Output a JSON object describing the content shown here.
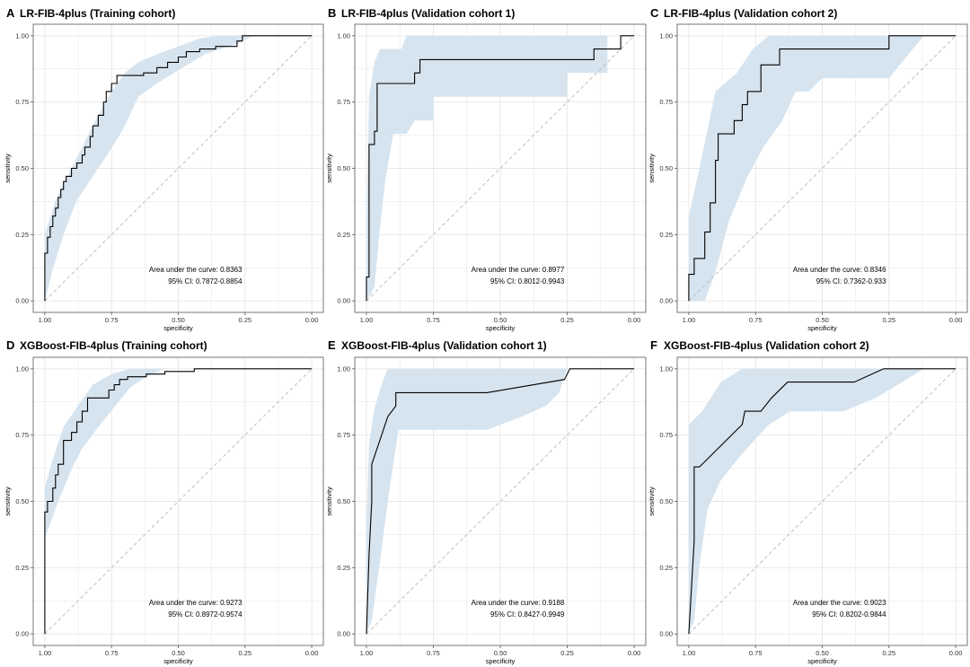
{
  "figure": {
    "xlabel": "specificity",
    "ylabel": "sensitivity",
    "auc_prefix": "Area under the curve: ",
    "ci_prefix": "95% CI: ",
    "x_ticks": [
      "1.00",
      "0.75",
      "0.50",
      "0.25",
      "0.00"
    ],
    "y_ticks": [
      "0.00",
      "0.25",
      "0.50",
      "0.75",
      "1.00"
    ],
    "colors": {
      "band": "#d6e4ef",
      "curve": "#000000",
      "diagonal": "#bfbfbf",
      "grid": "#e6e6e6",
      "axis": "#555555"
    }
  },
  "chart_data": [
    {
      "letter": "A",
      "type": "line",
      "title": "LR-FIB-4plus (Training cohort)",
      "xlabel": "specificity",
      "ylabel": "sensitivity",
      "xlim": [
        1,
        0
      ],
      "ylim": [
        0,
        1
      ],
      "auc": "0.8363",
      "ci": "0.7872-0.8854",
      "roc": [
        [
          1.0,
          0.0
        ],
        [
          1.0,
          0.18
        ],
        [
          0.99,
          0.18
        ],
        [
          0.99,
          0.24
        ],
        [
          0.98,
          0.24
        ],
        [
          0.98,
          0.28
        ],
        [
          0.97,
          0.28
        ],
        [
          0.97,
          0.32
        ],
        [
          0.96,
          0.32
        ],
        [
          0.96,
          0.35
        ],
        [
          0.95,
          0.35
        ],
        [
          0.95,
          0.39
        ],
        [
          0.94,
          0.39
        ],
        [
          0.94,
          0.42
        ],
        [
          0.93,
          0.42
        ],
        [
          0.93,
          0.45
        ],
        [
          0.92,
          0.45
        ],
        [
          0.92,
          0.47
        ],
        [
          0.9,
          0.47
        ],
        [
          0.9,
          0.5
        ],
        [
          0.88,
          0.5
        ],
        [
          0.88,
          0.52
        ],
        [
          0.86,
          0.52
        ],
        [
          0.86,
          0.55
        ],
        [
          0.85,
          0.55
        ],
        [
          0.85,
          0.58
        ],
        [
          0.83,
          0.58
        ],
        [
          0.83,
          0.62
        ],
        [
          0.82,
          0.62
        ],
        [
          0.82,
          0.66
        ],
        [
          0.8,
          0.66
        ],
        [
          0.8,
          0.7
        ],
        [
          0.78,
          0.7
        ],
        [
          0.78,
          0.75
        ],
        [
          0.77,
          0.75
        ],
        [
          0.77,
          0.79
        ],
        [
          0.75,
          0.79
        ],
        [
          0.75,
          0.82
        ],
        [
          0.73,
          0.82
        ],
        [
          0.73,
          0.85
        ],
        [
          0.63,
          0.85
        ],
        [
          0.63,
          0.86
        ],
        [
          0.58,
          0.86
        ],
        [
          0.58,
          0.88
        ],
        [
          0.54,
          0.88
        ],
        [
          0.54,
          0.9
        ],
        [
          0.5,
          0.9
        ],
        [
          0.5,
          0.92
        ],
        [
          0.47,
          0.92
        ],
        [
          0.47,
          0.94
        ],
        [
          0.42,
          0.94
        ],
        [
          0.42,
          0.95
        ],
        [
          0.36,
          0.95
        ],
        [
          0.36,
          0.96
        ],
        [
          0.28,
          0.96
        ],
        [
          0.28,
          0.98
        ],
        [
          0.26,
          0.98
        ],
        [
          0.26,
          1.0
        ],
        [
          0.0,
          1.0
        ]
      ],
      "ci_upper": [
        [
          1.0,
          0.25
        ],
        [
          0.96,
          0.38
        ],
        [
          0.9,
          0.5
        ],
        [
          0.85,
          0.6
        ],
        [
          0.8,
          0.7
        ],
        [
          0.75,
          0.79
        ],
        [
          0.7,
          0.86
        ],
        [
          0.65,
          0.9
        ],
        [
          0.58,
          0.93
        ],
        [
          0.5,
          0.96
        ],
        [
          0.42,
          0.99
        ],
        [
          0.35,
          1.0
        ],
        [
          0.0,
          1.0
        ]
      ],
      "ci_lower": [
        [
          0.0,
          1.0
        ],
        [
          0.22,
          1.0
        ],
        [
          0.28,
          0.97
        ],
        [
          0.4,
          0.93
        ],
        [
          0.5,
          0.87
        ],
        [
          0.58,
          0.82
        ],
        [
          0.65,
          0.77
        ],
        [
          0.7,
          0.66
        ],
        [
          0.76,
          0.56
        ],
        [
          0.82,
          0.47
        ],
        [
          0.88,
          0.38
        ],
        [
          0.93,
          0.25
        ],
        [
          0.97,
          0.12
        ],
        [
          1.0,
          0.0
        ]
      ]
    },
    {
      "letter": "B",
      "type": "line",
      "title": "LR-FIB-4plus (Validation cohort 1)",
      "xlabel": "specificity",
      "ylabel": "sensitivity",
      "xlim": [
        1,
        0
      ],
      "ylim": [
        0,
        1
      ],
      "auc": "0.8977",
      "ci": "0.8012-0.9943",
      "roc": [
        [
          1.0,
          0.0
        ],
        [
          1.0,
          0.09
        ],
        [
          0.99,
          0.09
        ],
        [
          0.99,
          0.59
        ],
        [
          0.97,
          0.59
        ],
        [
          0.97,
          0.64
        ],
        [
          0.96,
          0.64
        ],
        [
          0.96,
          0.82
        ],
        [
          0.82,
          0.82
        ],
        [
          0.82,
          0.86
        ],
        [
          0.8,
          0.86
        ],
        [
          0.8,
          0.91
        ],
        [
          0.15,
          0.91
        ],
        [
          0.15,
          0.95
        ],
        [
          0.05,
          0.95
        ],
        [
          0.05,
          1.0
        ],
        [
          0.0,
          1.0
        ]
      ],
      "ci_upper": [
        [
          1.0,
          0.3
        ],
        [
          0.99,
          0.77
        ],
        [
          0.97,
          0.9
        ],
        [
          0.95,
          0.95
        ],
        [
          0.87,
          0.95
        ],
        [
          0.85,
          1.0
        ],
        [
          0.0,
          1.0
        ]
      ],
      "ci_lower": [
        [
          0.0,
          1.0
        ],
        [
          0.1,
          1.0
        ],
        [
          0.1,
          0.86
        ],
        [
          0.25,
          0.86
        ],
        [
          0.25,
          0.77
        ],
        [
          0.75,
          0.77
        ],
        [
          0.75,
          0.68
        ],
        [
          0.82,
          0.68
        ],
        [
          0.85,
          0.63
        ],
        [
          0.9,
          0.63
        ],
        [
          0.93,
          0.45
        ],
        [
          0.95,
          0.27
        ],
        [
          0.97,
          0.05
        ],
        [
          1.0,
          0.0
        ]
      ]
    },
    {
      "letter": "C",
      "type": "line",
      "title": "LR-FIB-4plus (Validation cohort 2)",
      "xlabel": "specificity",
      "ylabel": "sensitivity",
      "xlim": [
        1,
        0
      ],
      "ylim": [
        0,
        1
      ],
      "auc": "0.8346",
      "ci": "0.7362-0.933",
      "roc": [
        [
          1.0,
          0.0
        ],
        [
          1.0,
          0.1
        ],
        [
          0.98,
          0.1
        ],
        [
          0.98,
          0.16
        ],
        [
          0.94,
          0.16
        ],
        [
          0.94,
          0.26
        ],
        [
          0.92,
          0.26
        ],
        [
          0.92,
          0.37
        ],
        [
          0.9,
          0.37
        ],
        [
          0.9,
          0.53
        ],
        [
          0.89,
          0.53
        ],
        [
          0.89,
          0.63
        ],
        [
          0.83,
          0.63
        ],
        [
          0.83,
          0.68
        ],
        [
          0.8,
          0.68
        ],
        [
          0.8,
          0.74
        ],
        [
          0.78,
          0.74
        ],
        [
          0.78,
          0.79
        ],
        [
          0.73,
          0.79
        ],
        [
          0.73,
          0.89
        ],
        [
          0.66,
          0.89
        ],
        [
          0.66,
          0.95
        ],
        [
          0.25,
          0.95
        ],
        [
          0.25,
          1.0
        ],
        [
          0.0,
          1.0
        ]
      ],
      "ci_upper": [
        [
          1.0,
          0.32
        ],
        [
          0.96,
          0.5
        ],
        [
          0.9,
          0.79
        ],
        [
          0.82,
          0.86
        ],
        [
          0.76,
          0.95
        ],
        [
          0.7,
          1.0
        ],
        [
          0.0,
          1.0
        ]
      ],
      "ci_lower": [
        [
          0.0,
          1.0
        ],
        [
          0.12,
          1.0
        ],
        [
          0.25,
          0.84
        ],
        [
          0.5,
          0.84
        ],
        [
          0.55,
          0.79
        ],
        [
          0.6,
          0.79
        ],
        [
          0.65,
          0.68
        ],
        [
          0.72,
          0.58
        ],
        [
          0.78,
          0.47
        ],
        [
          0.85,
          0.3
        ],
        [
          0.9,
          0.11
        ],
        [
          0.94,
          0.0
        ],
        [
          1.0,
          0.0
        ]
      ]
    },
    {
      "letter": "D",
      "type": "line",
      "title": "XGBoost-FIB-4plus (Training cohort)",
      "xlabel": "specificity",
      "ylabel": "sensitivity",
      "xlim": [
        1,
        0
      ],
      "ylim": [
        0,
        1
      ],
      "auc": "0.9273",
      "ci": "0.8972-0.9574",
      "roc": [
        [
          1.0,
          0.0
        ],
        [
          1.0,
          0.46
        ],
        [
          0.99,
          0.46
        ],
        [
          0.99,
          0.5
        ],
        [
          0.97,
          0.5
        ],
        [
          0.97,
          0.55
        ],
        [
          0.96,
          0.55
        ],
        [
          0.96,
          0.6
        ],
        [
          0.95,
          0.6
        ],
        [
          0.95,
          0.64
        ],
        [
          0.93,
          0.64
        ],
        [
          0.93,
          0.73
        ],
        [
          0.9,
          0.73
        ],
        [
          0.9,
          0.76
        ],
        [
          0.88,
          0.76
        ],
        [
          0.88,
          0.8
        ],
        [
          0.86,
          0.8
        ],
        [
          0.86,
          0.84
        ],
        [
          0.84,
          0.84
        ],
        [
          0.84,
          0.89
        ],
        [
          0.76,
          0.89
        ],
        [
          0.76,
          0.92
        ],
        [
          0.74,
          0.92
        ],
        [
          0.74,
          0.94
        ],
        [
          0.72,
          0.94
        ],
        [
          0.72,
          0.96
        ],
        [
          0.69,
          0.96
        ],
        [
          0.69,
          0.97
        ],
        [
          0.62,
          0.97
        ],
        [
          0.62,
          0.98
        ],
        [
          0.55,
          0.98
        ],
        [
          0.55,
          0.99
        ],
        [
          0.44,
          0.99
        ],
        [
          0.44,
          1.0
        ],
        [
          0.0,
          1.0
        ]
      ],
      "ci_upper": [
        [
          1.0,
          0.55
        ],
        [
          0.97,
          0.66
        ],
        [
          0.93,
          0.78
        ],
        [
          0.87,
          0.87
        ],
        [
          0.82,
          0.94
        ],
        [
          0.75,
          0.98
        ],
        [
          0.68,
          1.0
        ],
        [
          0.0,
          1.0
        ]
      ],
      "ci_lower": [
        [
          0.0,
          1.0
        ],
        [
          0.55,
          1.0
        ],
        [
          0.62,
          0.97
        ],
        [
          0.68,
          0.93
        ],
        [
          0.72,
          0.88
        ],
        [
          0.8,
          0.78
        ],
        [
          0.86,
          0.7
        ],
        [
          0.9,
          0.62
        ],
        [
          0.95,
          0.5
        ],
        [
          1.0,
          0.36
        ]
      ]
    },
    {
      "letter": "E",
      "type": "line",
      "title": "XGBoost-FIB-4plus (Validation cohort 1)",
      "xlabel": "specificity",
      "ylabel": "sensitivity",
      "xlim": [
        1,
        0
      ],
      "ylim": [
        0,
        1
      ],
      "auc": "0.9188",
      "ci": "0.8427-0.9949",
      "roc": [
        [
          1.0,
          0.0
        ],
        [
          0.99,
          0.3
        ],
        [
          0.98,
          0.5
        ],
        [
          0.98,
          0.64
        ],
        [
          0.95,
          0.73
        ],
        [
          0.92,
          0.82
        ],
        [
          0.89,
          0.86
        ],
        [
          0.89,
          0.91
        ],
        [
          0.55,
          0.91
        ],
        [
          0.26,
          0.96
        ],
        [
          0.24,
          1.0
        ],
        [
          0.0,
          1.0
        ]
      ],
      "ci_upper": [
        [
          1.0,
          0.4
        ],
        [
          0.99,
          0.72
        ],
        [
          0.97,
          0.85
        ],
        [
          0.94,
          0.95
        ],
        [
          0.92,
          1.0
        ],
        [
          0.0,
          1.0
        ]
      ],
      "ci_lower": [
        [
          0.0,
          1.0
        ],
        [
          0.25,
          1.0
        ],
        [
          0.28,
          0.91
        ],
        [
          0.33,
          0.86
        ],
        [
          0.42,
          0.82
        ],
        [
          0.55,
          0.77
        ],
        [
          0.88,
          0.77
        ],
        [
          0.9,
          0.64
        ],
        [
          0.92,
          0.5
        ],
        [
          0.95,
          0.27
        ],
        [
          0.98,
          0.05
        ],
        [
          1.0,
          0.0
        ]
      ]
    },
    {
      "letter": "F",
      "type": "line",
      "title": "XGBoost-FIB-4plus (Validation cohort 2)",
      "xlabel": "specificity",
      "ylabel": "sensitivity",
      "xlim": [
        1,
        0
      ],
      "ylim": [
        0,
        1
      ],
      "auc": "0.9023",
      "ci": "0.8202-0.9844",
      "roc": [
        [
          1.0,
          0.0
        ],
        [
          0.98,
          0.35
        ],
        [
          0.98,
          0.63
        ],
        [
          0.96,
          0.63
        ],
        [
          0.8,
          0.79
        ],
        [
          0.79,
          0.84
        ],
        [
          0.73,
          0.84
        ],
        [
          0.69,
          0.89
        ],
        [
          0.63,
          0.95
        ],
        [
          0.38,
          0.95
        ],
        [
          0.27,
          1.0
        ],
        [
          0.0,
          1.0
        ]
      ],
      "ci_upper": [
        [
          1.0,
          0.79
        ],
        [
          0.95,
          0.84
        ],
        [
          0.88,
          0.95
        ],
        [
          0.8,
          1.0
        ],
        [
          0.0,
          1.0
        ]
      ],
      "ci_lower": [
        [
          0.0,
          1.0
        ],
        [
          0.12,
          1.0
        ],
        [
          0.2,
          0.95
        ],
        [
          0.3,
          0.89
        ],
        [
          0.42,
          0.84
        ],
        [
          0.62,
          0.84
        ],
        [
          0.7,
          0.79
        ],
        [
          0.8,
          0.68
        ],
        [
          0.88,
          0.58
        ],
        [
          0.93,
          0.47
        ],
        [
          0.96,
          0.26
        ],
        [
          0.98,
          0.05
        ],
        [
          1.0,
          0.0
        ]
      ]
    }
  ]
}
